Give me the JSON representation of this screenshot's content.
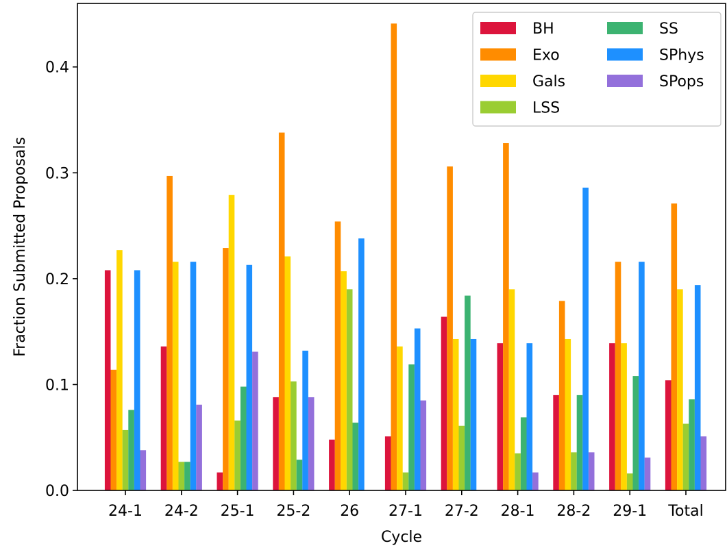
{
  "chart_data": {
    "type": "bar",
    "title": "",
    "xlabel": "Cycle",
    "ylabel": "Fraction Submitted Proposals",
    "categories": [
      "24-1",
      "24-2",
      "25-1",
      "25-2",
      "26",
      "27-1",
      "27-2",
      "28-1",
      "28-2",
      "29-1",
      "Total"
    ],
    "ylim": [
      0,
      0.46
    ],
    "yticks": [
      0.0,
      0.1,
      0.2,
      0.3,
      0.4
    ],
    "ytick_labels": [
      "0.0",
      "0.1",
      "0.2",
      "0.3",
      "0.4"
    ],
    "grid": false,
    "legend_position": "top-right",
    "legend_columns": 2,
    "series": [
      {
        "name": "BH",
        "color": "#dc143c",
        "values": [
          0.208,
          0.136,
          0.017,
          0.088,
          0.048,
          0.051,
          0.164,
          0.139,
          0.09,
          0.139,
          0.104
        ]
      },
      {
        "name": "Exo",
        "color": "#ff8c00",
        "values": [
          0.114,
          0.297,
          0.229,
          0.338,
          0.254,
          0.441,
          0.306,
          0.328,
          0.179,
          0.216,
          0.271
        ]
      },
      {
        "name": "Gals",
        "color": "#ffd700",
        "values": [
          0.227,
          0.216,
          0.279,
          0.221,
          0.207,
          0.136,
          0.143,
          0.19,
          0.143,
          0.139,
          0.19
        ]
      },
      {
        "name": "LSS",
        "color": "#9acd32",
        "values": [
          0.057,
          0.027,
          0.066,
          0.103,
          0.19,
          0.017,
          0.061,
          0.035,
          0.036,
          0.016,
          0.063
        ]
      },
      {
        "name": "SS",
        "color": "#3cb371",
        "values": [
          0.076,
          0.027,
          0.098,
          0.029,
          0.064,
          0.119,
          0.184,
          0.069,
          0.09,
          0.108,
          0.086
        ]
      },
      {
        "name": "SPhys",
        "color": "#1e90ff",
        "values": [
          0.208,
          0.216,
          0.213,
          0.132,
          0.238,
          0.153,
          0.143,
          0.139,
          0.286,
          0.216,
          0.194
        ]
      },
      {
        "name": "SPops",
        "color": "#9370db",
        "values": [
          0.038,
          0.081,
          0.131,
          0.088,
          0.0,
          0.085,
          0.0,
          0.017,
          0.036,
          0.031,
          0.051
        ]
      }
    ]
  }
}
